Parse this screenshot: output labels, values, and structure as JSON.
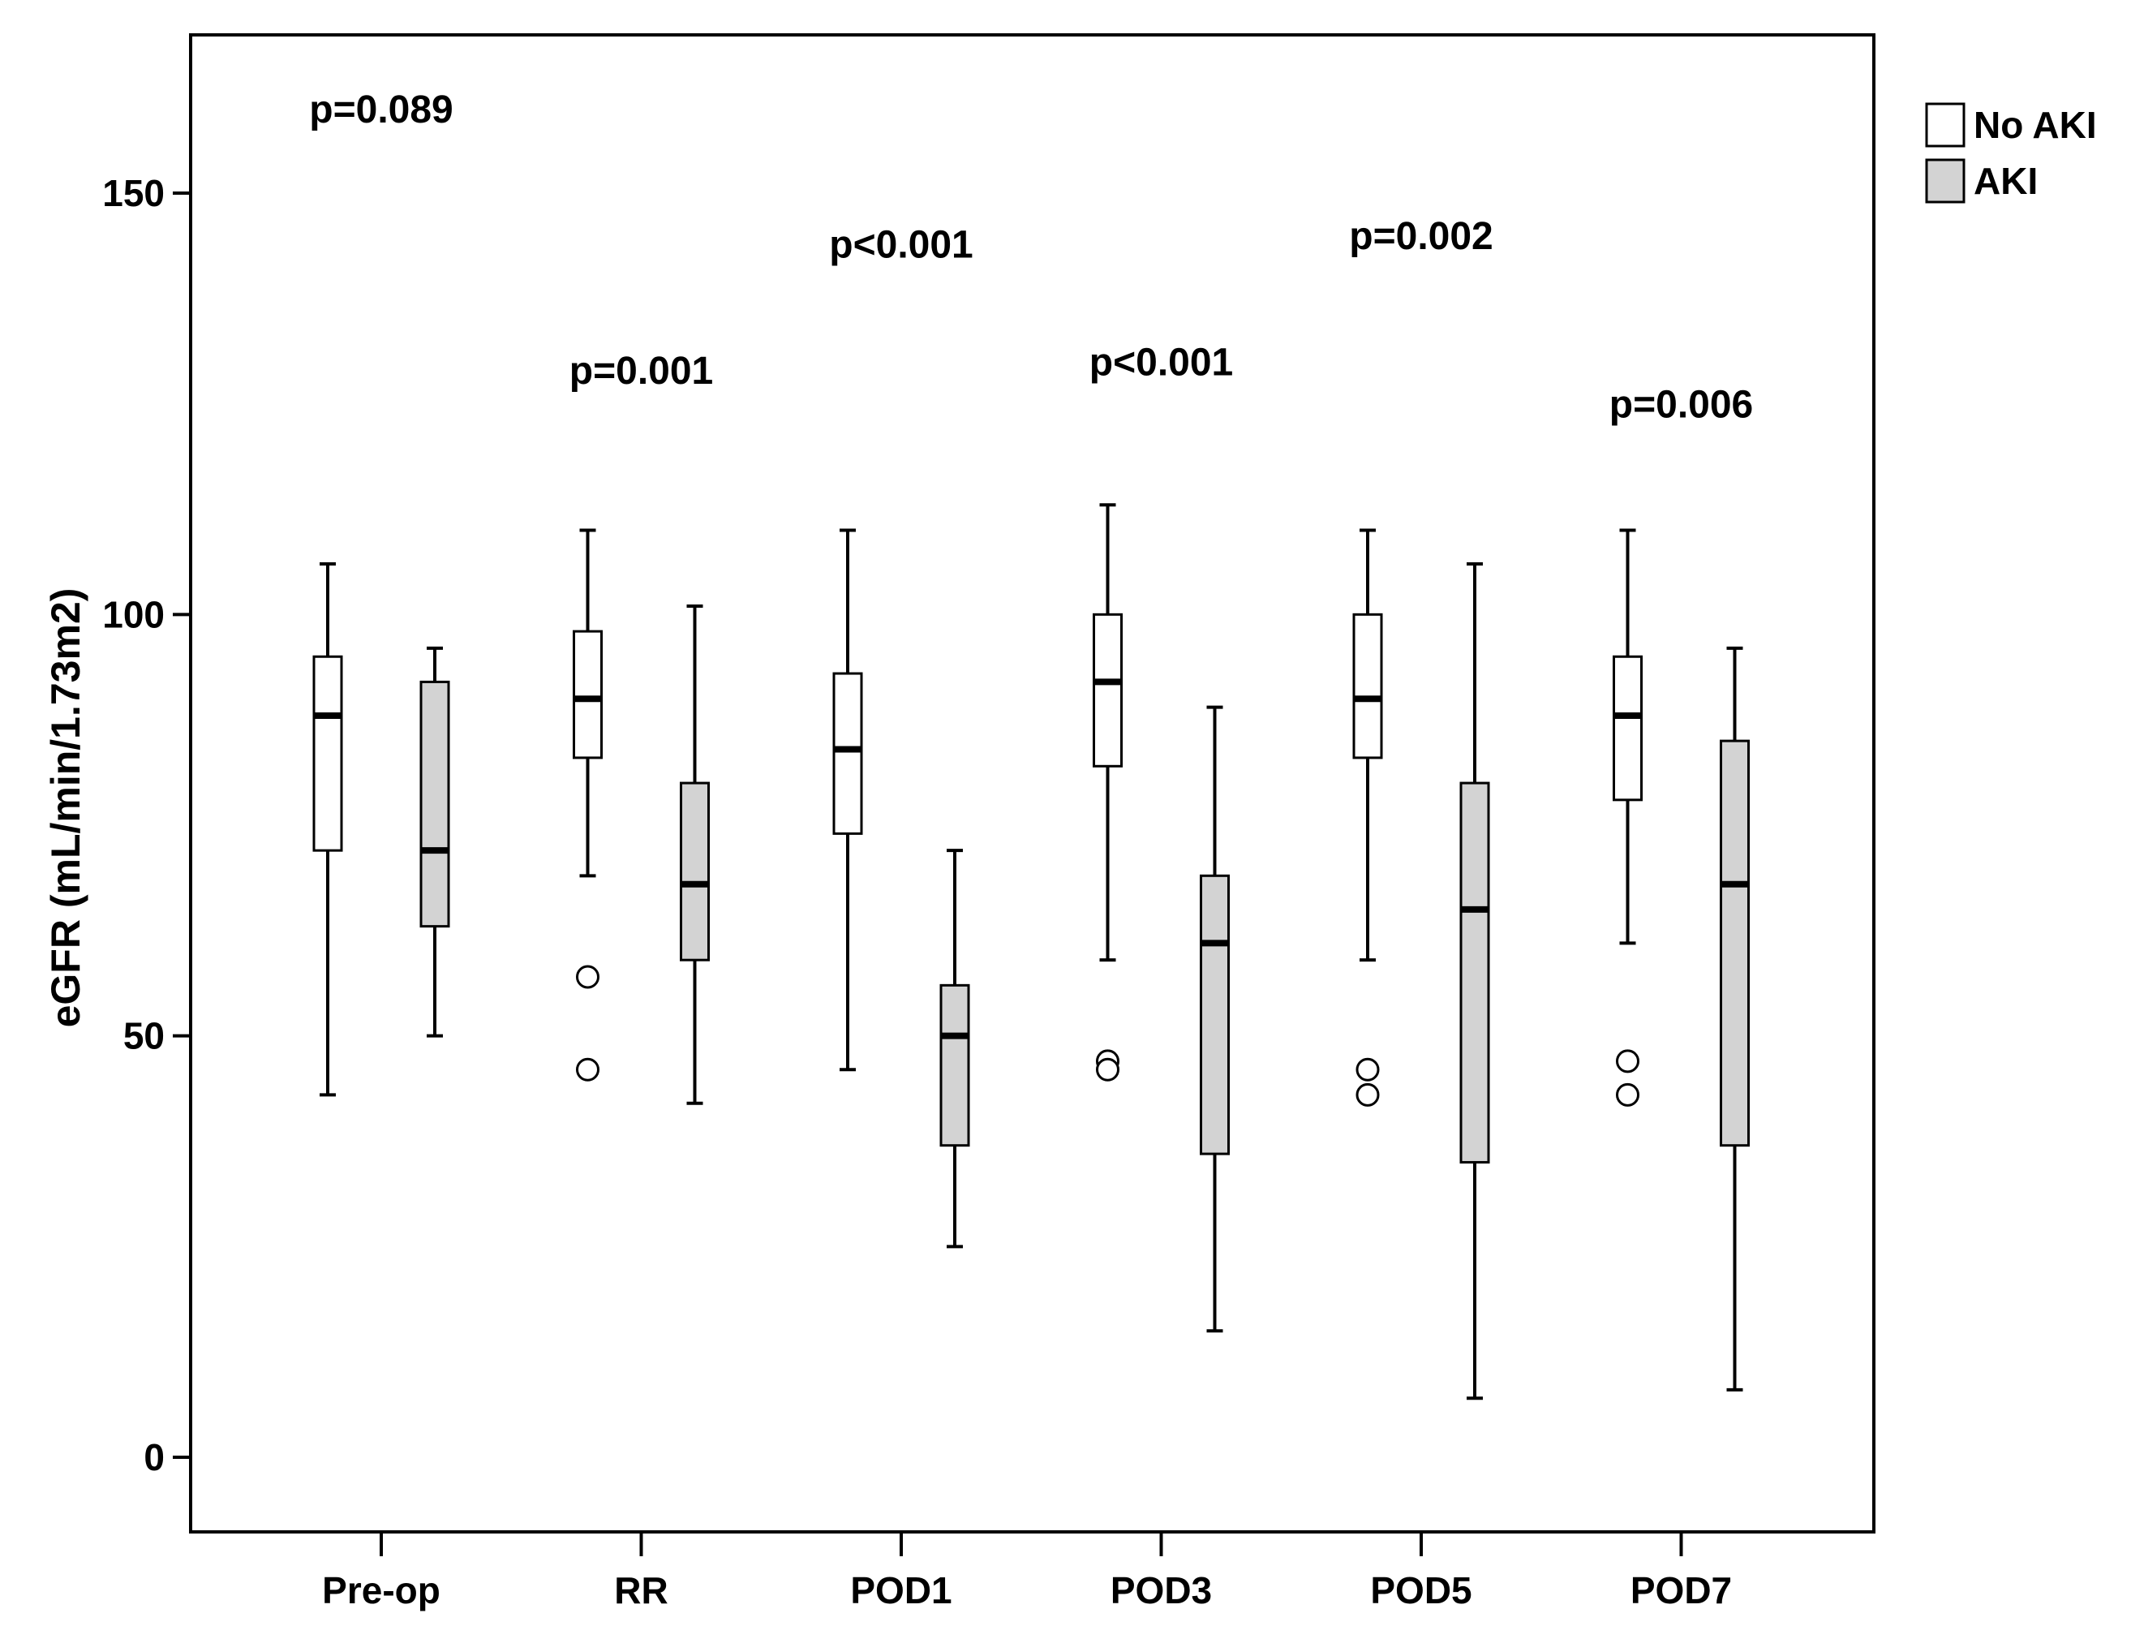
{
  "chart_data": {
    "type": "box",
    "title": "",
    "xlabel": "",
    "ylabel": "eGFR (mL/min/1.73m2)",
    "ylim": [
      -8,
      170
    ],
    "yticks": [
      0,
      50,
      100,
      150
    ],
    "ytick_labels": [
      "0",
      "50",
      "100",
      "150"
    ],
    "grid": false,
    "legend_position": "top-right, outside plot",
    "categories": [
      "Pre-op",
      "RR",
      "POD1",
      "POD3",
      "POD5",
      "POD7"
    ],
    "series": [
      {
        "name": "No AKI",
        "color": "#ffffff",
        "boxes": [
          {
            "whisker_low": 43,
            "q1": 72,
            "median": 88,
            "q3": 95,
            "whisker_high": 106,
            "outliers": []
          },
          {
            "whisker_low": 69,
            "q1": 83,
            "median": 90,
            "q3": 98,
            "whisker_high": 110,
            "outliers": [
              57,
              46
            ]
          },
          {
            "whisker_low": 46,
            "q1": 74,
            "median": 84,
            "q3": 93,
            "whisker_high": 110,
            "outliers": []
          },
          {
            "whisker_low": 59,
            "q1": 82,
            "median": 92,
            "q3": 100,
            "whisker_high": 113,
            "outliers": [
              47,
              46
            ]
          },
          {
            "whisker_low": 59,
            "q1": 83,
            "median": 90,
            "q3": 100,
            "whisker_high": 110,
            "outliers": [
              46,
              43
            ]
          },
          {
            "whisker_low": 61,
            "q1": 78,
            "median": 88,
            "q3": 95,
            "whisker_high": 110,
            "outliers": [
              47,
              43
            ]
          }
        ]
      },
      {
        "name": "AKI",
        "color": "#d3d3d3",
        "boxes": [
          {
            "whisker_low": 50,
            "q1": 63,
            "median": 72,
            "q3": 92,
            "whisker_high": 96,
            "outliers": []
          },
          {
            "whisker_low": 42,
            "q1": 59,
            "median": 68,
            "q3": 80,
            "whisker_high": 101,
            "outliers": []
          },
          {
            "whisker_low": 25,
            "q1": 37,
            "median": 50,
            "q3": 56,
            "whisker_high": 72,
            "outliers": []
          },
          {
            "whisker_low": 15,
            "q1": 36,
            "median": 61,
            "q3": 69,
            "whisker_high": 89,
            "outliers": []
          },
          {
            "whisker_low": 7,
            "q1": 35,
            "median": 65,
            "q3": 80,
            "whisker_high": 106,
            "outliers": []
          },
          {
            "whisker_low": 8,
            "q1": 37,
            "median": 68,
            "q3": 85,
            "whisker_high": 96,
            "outliers": []
          }
        ]
      }
    ],
    "annotations": [
      {
        "text": "p=0.089",
        "category": "Pre-op",
        "y": 160
      },
      {
        "text": "p=0.001",
        "category": "RR",
        "y": 129
      },
      {
        "text": "p<0.001",
        "category": "POD1",
        "y": 144
      },
      {
        "text": "p<0.001",
        "category": "POD3",
        "y": 130
      },
      {
        "text": "p=0.002",
        "category": "POD5",
        "y": 145
      },
      {
        "text": "p=0.006",
        "category": "POD7",
        "y": 125
      }
    ]
  }
}
